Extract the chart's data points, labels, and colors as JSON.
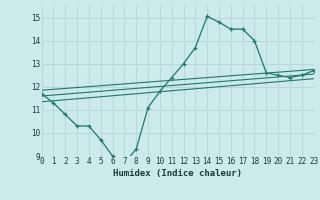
{
  "bg_color": "#cce9eb",
  "grid_color": "#b8d8da",
  "line_color": "#1a7a6e",
  "xlabel": "Humidex (Indice chaleur)",
  "ylim": [
    9,
    15.5
  ],
  "xlim": [
    0,
    23
  ],
  "yticks": [
    9,
    10,
    11,
    12,
    13,
    14,
    15
  ],
  "xticks": [
    0,
    1,
    2,
    3,
    4,
    5,
    6,
    7,
    8,
    9,
    10,
    11,
    12,
    13,
    14,
    15,
    16,
    17,
    18,
    19,
    20,
    21,
    22,
    23
  ],
  "curve_x": [
    0,
    1,
    2,
    3,
    4,
    5,
    6,
    7,
    8,
    9,
    10,
    11,
    12,
    13,
    14,
    15,
    16,
    17,
    18,
    19,
    20,
    21,
    22,
    23
  ],
  "curve_y": [
    11.7,
    11.3,
    10.8,
    10.3,
    10.3,
    9.7,
    9.0,
    8.7,
    9.3,
    11.1,
    11.8,
    12.4,
    13.0,
    13.7,
    15.05,
    14.8,
    14.5,
    14.5,
    14.0,
    12.6,
    12.5,
    12.4,
    12.5,
    12.7
  ],
  "line1_x": [
    0,
    23
  ],
  "line1_y": [
    11.85,
    12.75
  ],
  "line2_x": [
    0,
    23
  ],
  "line2_y": [
    11.6,
    12.55
  ],
  "line3_x": [
    0,
    23
  ],
  "line3_y": [
    11.35,
    12.35
  ]
}
